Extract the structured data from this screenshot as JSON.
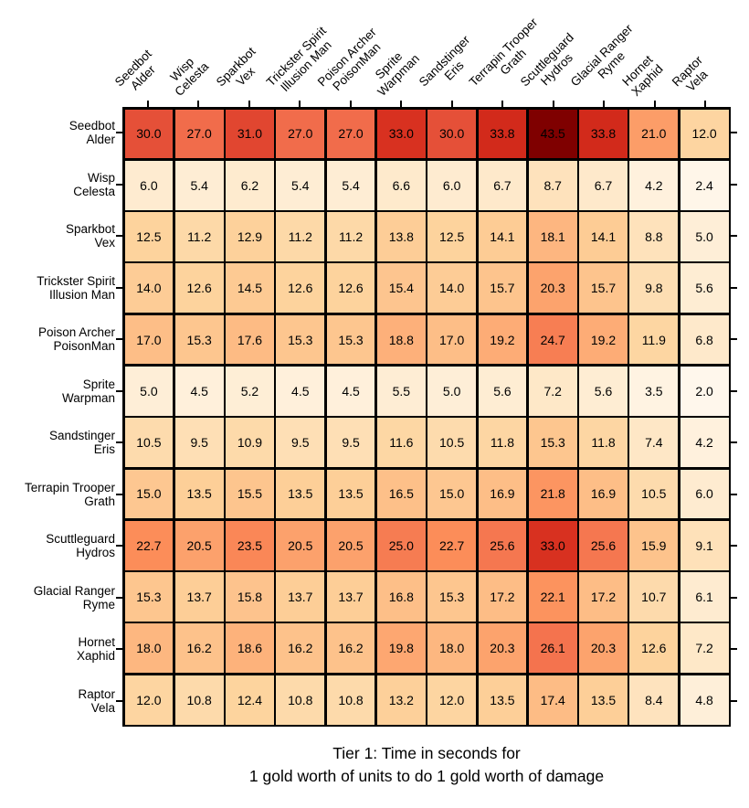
{
  "chart_data": {
    "type": "heatmap",
    "title": "Tier 1: Time in seconds for\n1 gold worth of units to do 1 gold worth of damage",
    "title_lines": [
      "Tier 1: Time in seconds for",
      "1 gold worth of units to do 1 gold worth of damage"
    ],
    "columns": [
      "Seedbot\nAlder",
      "Wisp\nCelesta",
      "Sparkbot\nVex",
      "Trickster Spirit\nIllusion Man",
      "Poison Archer\nPoisonMan",
      "Sprite\nWarpman",
      "Sandstinger\nEris",
      "Terrapin Trooper\nGrath",
      "Scuttleguard\nHydros",
      "Glacial Ranger\nRyme",
      "Hornet\nXaphid",
      "Raptor\nVela"
    ],
    "rows": [
      "Seedbot\nAlder",
      "Wisp\nCelesta",
      "Sparkbot\nVex",
      "Trickster Spirit\nIllusion Man",
      "Poison Archer\nPoisonMan",
      "Sprite\nWarpman",
      "Sandstinger\nEris",
      "Terrapin Trooper\nGrath",
      "Scuttleguard\nHydros",
      "Glacial Ranger\nRyme",
      "Hornet\nXaphid",
      "Raptor\nVela"
    ],
    "values": [
      [
        30.0,
        27.0,
        31.0,
        27.0,
        27.0,
        33.0,
        30.0,
        33.8,
        43.5,
        33.8,
        21.0,
        12.0
      ],
      [
        6.0,
        5.4,
        6.2,
        5.4,
        5.4,
        6.6,
        6.0,
        6.7,
        8.7,
        6.7,
        4.2,
        2.4
      ],
      [
        12.5,
        11.2,
        12.9,
        11.2,
        11.2,
        13.8,
        12.5,
        14.1,
        18.1,
        14.1,
        8.8,
        5.0
      ],
      [
        14.0,
        12.6,
        14.5,
        12.6,
        12.6,
        15.4,
        14.0,
        15.7,
        20.3,
        15.7,
        9.8,
        5.6
      ],
      [
        17.0,
        15.3,
        17.6,
        15.3,
        15.3,
        18.8,
        17.0,
        19.2,
        24.7,
        19.2,
        11.9,
        6.8
      ],
      [
        5.0,
        4.5,
        5.2,
        4.5,
        4.5,
        5.5,
        5.0,
        5.6,
        7.2,
        5.6,
        3.5,
        2.0
      ],
      [
        10.5,
        9.5,
        10.9,
        9.5,
        9.5,
        11.6,
        10.5,
        11.8,
        15.3,
        11.8,
        7.4,
        4.2
      ],
      [
        15.0,
        13.5,
        15.5,
        13.5,
        13.5,
        16.5,
        15.0,
        16.9,
        21.8,
        16.9,
        10.5,
        6.0
      ],
      [
        22.7,
        20.5,
        23.5,
        20.5,
        20.5,
        25.0,
        22.7,
        25.6,
        33.0,
        25.6,
        15.9,
        9.1
      ],
      [
        15.3,
        13.7,
        15.8,
        13.7,
        13.7,
        16.8,
        15.3,
        17.2,
        22.1,
        17.2,
        10.7,
        6.1
      ],
      [
        18.0,
        16.2,
        18.6,
        16.2,
        16.2,
        19.8,
        18.0,
        20.3,
        26.1,
        20.3,
        12.6,
        7.2
      ],
      [
        12.0,
        10.8,
        12.4,
        10.8,
        10.8,
        13.2,
        12.0,
        13.5,
        17.4,
        13.5,
        8.4,
        4.8
      ]
    ],
    "value_decimals": 1,
    "colormap": {
      "name": "OrRd",
      "stops": [
        "#fff7ec",
        "#fee8c8",
        "#fdd49e",
        "#fdbb84",
        "#fc8d59",
        "#ef6548",
        "#d7301f",
        "#b30000",
        "#7f0000"
      ],
      "vmin": 2.0,
      "vmax": 43.5
    },
    "cell_text_color": "#000000",
    "grid_line_color": "#000000",
    "background_color": "#ffffff",
    "legend": "none",
    "grid": "cell-borders"
  }
}
